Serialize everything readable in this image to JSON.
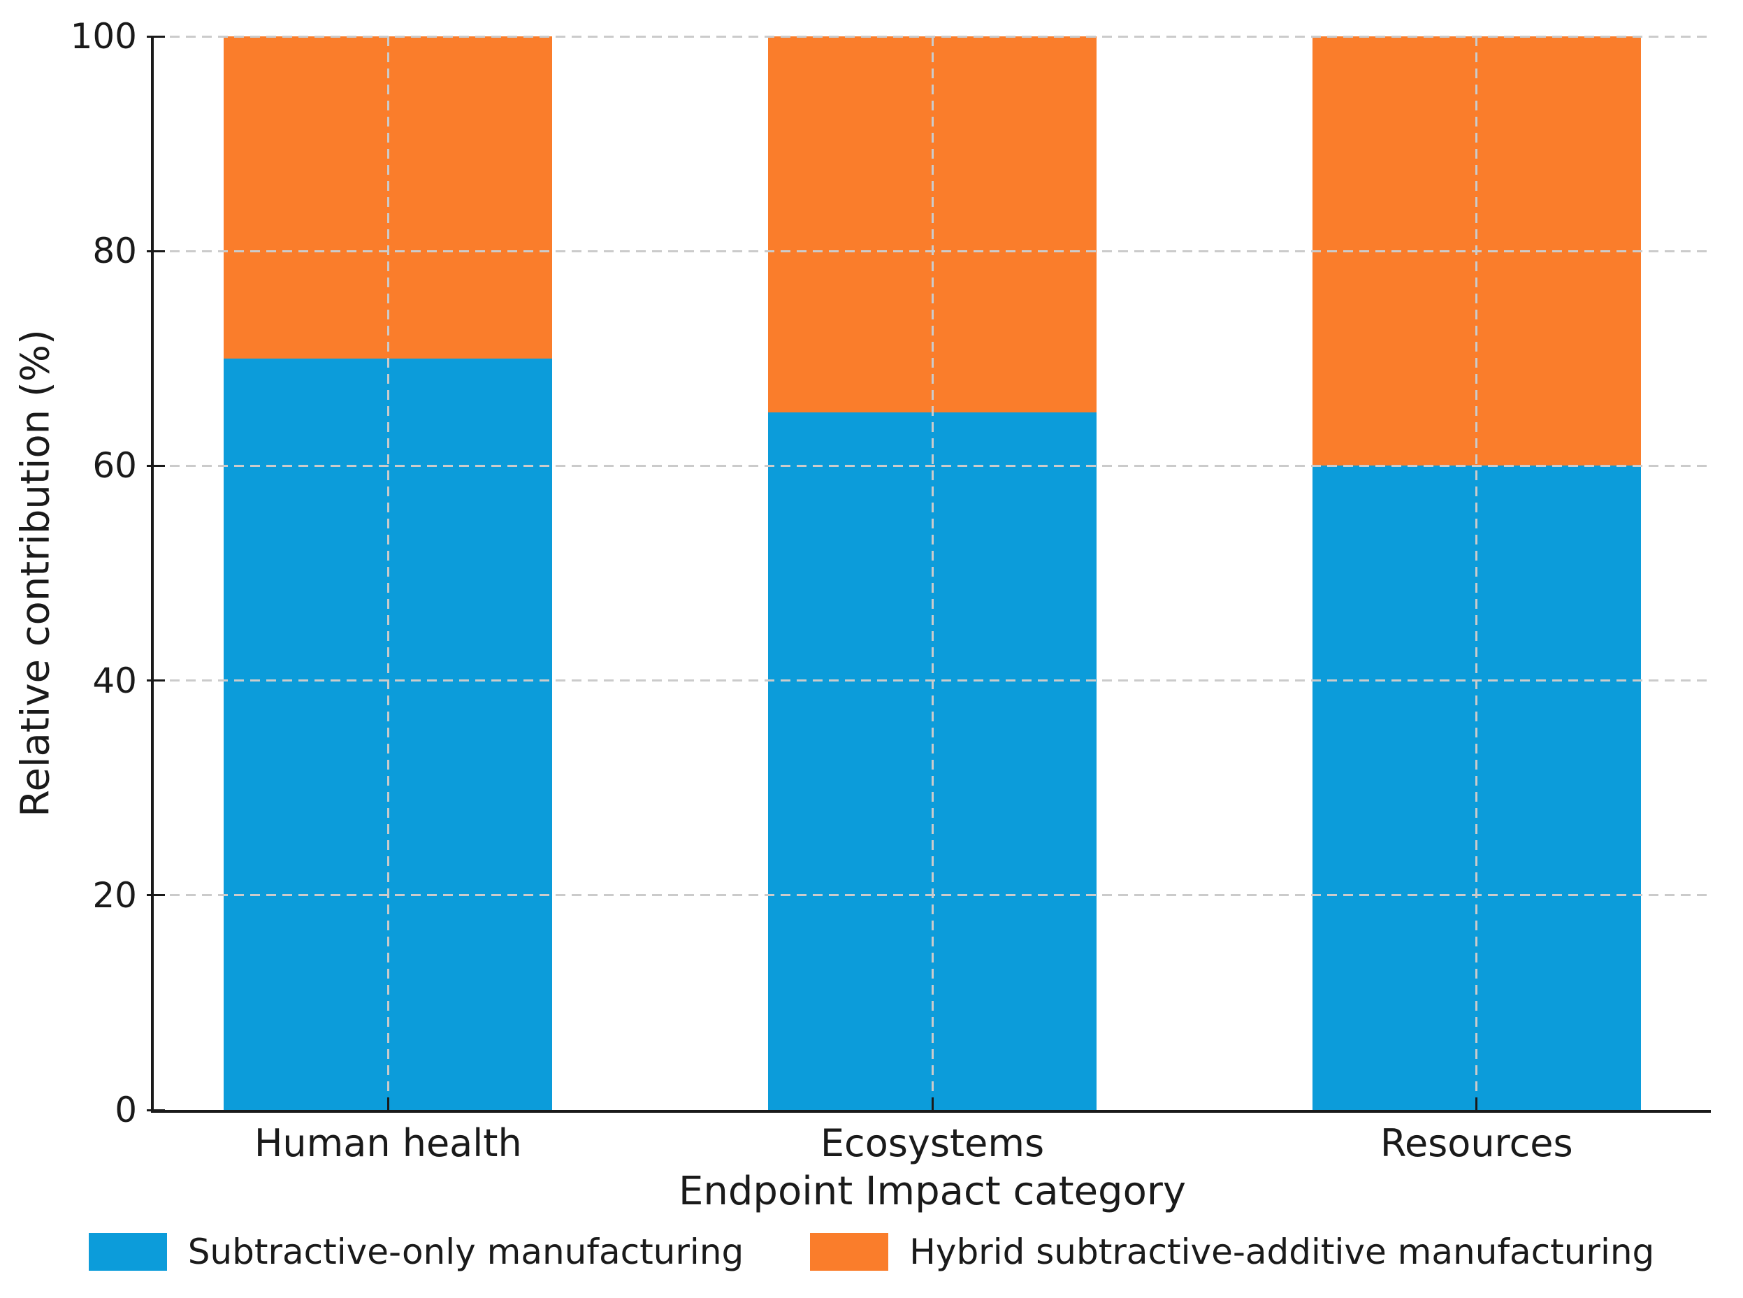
{
  "chart_data": {
    "type": "bar",
    "stacked": true,
    "title": "",
    "xlabel": "Endpoint Impact category",
    "ylabel": "Relative contribution (%)",
    "categories": [
      "Human health",
      "Ecosystems",
      "Resources"
    ],
    "series": [
      {
        "name": "Subtractive-only manufacturing",
        "color": "#0C9CDA",
        "values": [
          70,
          65,
          60
        ]
      },
      {
        "name": "Hybrid subtractive-additive manufacturing",
        "color": "#FA7D2B",
        "values": [
          30,
          35,
          40
        ]
      }
    ],
    "yticks": [
      0,
      20,
      40,
      60,
      80,
      100
    ],
    "ylim": [
      0,
      100
    ],
    "grid": "dashed horizontal and vertical gridlines drawn above bars",
    "legend_position": "bottom center"
  }
}
